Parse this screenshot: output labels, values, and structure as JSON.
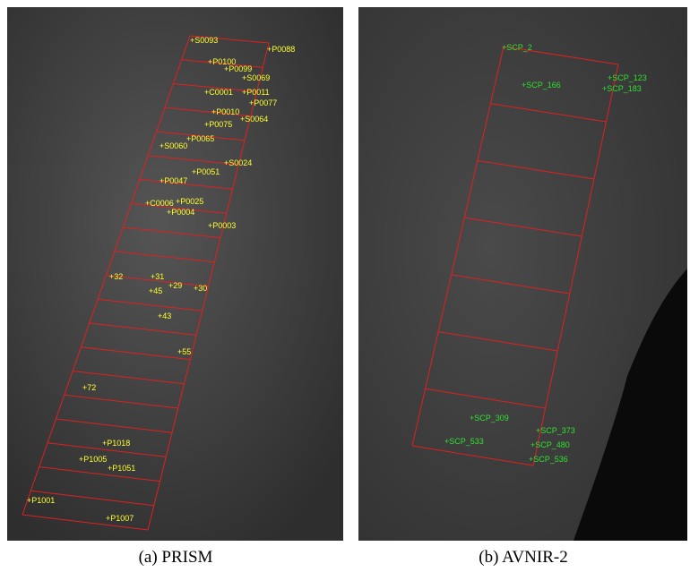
{
  "panels": [
    {
      "caption": "(a) PRISM",
      "labels": [
        "P0088",
        "S0093",
        "P0100",
        "P0099",
        "S0069",
        "C0001",
        "P0011",
        "P0077",
        "P0010",
        "S0064",
        "P0075",
        "P0065",
        "S0060",
        "S0024",
        "P0051",
        "P0047",
        "P0025",
        "P0004",
        "C0006",
        "P0003",
        "31",
        "29",
        "30",
        "45",
        "32",
        "43",
        "55",
        "72",
        "P1018",
        "P1005",
        "P1051",
        "P1007",
        "P1001"
      ]
    },
    {
      "caption": "(b) AVNIR-2",
      "labels": [
        "SCP_2",
        "SCP_123",
        "SCP_166",
        "SCP_183",
        "SCP_309",
        "SCP_373",
        "SCP_480",
        "SCP_536",
        "SCP_533"
      ]
    }
  ]
}
